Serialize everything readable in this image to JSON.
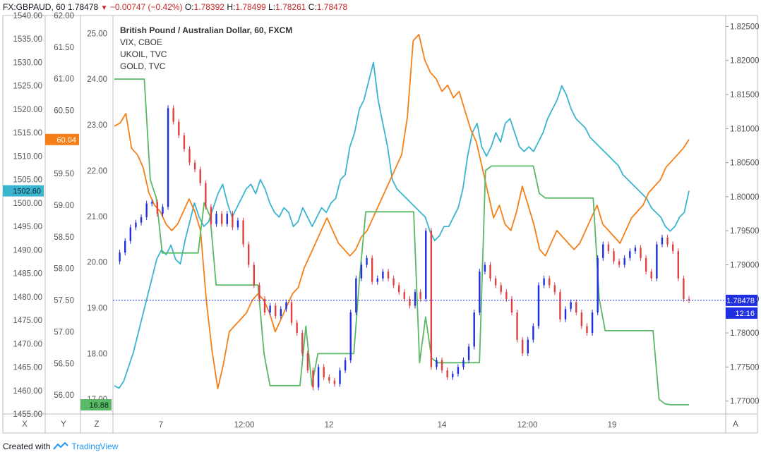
{
  "header": {
    "symbol": "FX:GBPAUD, 60",
    "last": "1.78478",
    "change": "−0.00747 (−0.42%)",
    "o_label": "O:",
    "o_value": "1.78392",
    "h_label": "H:",
    "h_value": "1.78499",
    "l_label": "L:",
    "l_value": "1.78261",
    "c_label": "C:",
    "c_value": "1.78478"
  },
  "footer": {
    "created_with": "Created with",
    "brand": "TradingView"
  },
  "axis_buttons": {
    "x": "X",
    "y": "Y",
    "z": "Z",
    "a": "A"
  },
  "chart_data": {
    "type": "line",
    "title": "British Pound / Australian Dollar, 60, FXCM",
    "legend": [
      "British Pound / Australian Dollar, 60, FXCM",
      "VIX, CBOE",
      "UKOIL, TVC",
      "GOLD, TVC"
    ],
    "x_ticks": [
      "7",
      "12:00",
      "12",
      "14",
      "12:00",
      "19"
    ],
    "axes": {
      "gold": {
        "range": [
          1455,
          1540
        ],
        "ticks": [
          1540,
          1535,
          1530,
          1525,
          1520,
          1515,
          1510,
          1505,
          1500,
          1495,
          1490,
          1485,
          1480,
          1475,
          1470,
          1465,
          1460,
          1455
        ],
        "tick_labels": [
          "1540.00",
          "1535.00",
          "1530.00",
          "1525.00",
          "1520.00",
          "1515.00",
          "1510.00",
          "1505.00",
          "1500.00",
          "1495.00",
          "1490.00",
          "1485.00",
          "1480.00",
          "1475.00",
          "1470.00",
          "1465.00",
          "1460.00",
          "1455.00"
        ]
      },
      "ukoil": {
        "range": [
          55.7,
          62.0
        ],
        "ticks": [
          62,
          61.5,
          61,
          60.5,
          60,
          59.5,
          59,
          58.5,
          58,
          57.5,
          57,
          56.5,
          56
        ],
        "tick_labels": [
          "62.00",
          "61.50",
          "61.00",
          "60.50",
          "60.00",
          "59.50",
          "59.00",
          "58.50",
          "58.00",
          "57.50",
          "57.00",
          "56.50",
          "56.00"
        ]
      },
      "vix": {
        "range": [
          16.68,
          25.39
        ],
        "ticks": [
          25,
          24,
          23,
          22,
          21,
          20,
          19,
          18,
          17
        ],
        "tick_labels": [
          "25.00",
          "24.00",
          "23.00",
          "22.00",
          "21.00",
          "20.00",
          "19.00",
          "18.00",
          "17.00"
        ]
      },
      "gbpaud": {
        "range": [
          1.7681,
          1.8266
        ],
        "ticks": [
          1.825,
          1.82,
          1.815,
          1.81,
          1.805,
          1.8,
          1.795,
          1.79,
          1.785,
          1.78,
          1.775,
          1.77
        ],
        "tick_labels": [
          "1.82500",
          "1.82000",
          "1.81500",
          "1.81000",
          "1.80500",
          "1.80000",
          "1.79500",
          "1.79000",
          "1.78500",
          "1.78000",
          "1.77500",
          "1.77000"
        ]
      }
    },
    "badges": {
      "gold_last": "1502.60",
      "ukoil_last": "60.04",
      "vix_last": "16.88",
      "price_last": "1.78478",
      "countdown": "12:16"
    },
    "series": [
      {
        "name": "GOLD, TVC",
        "axis": "gold",
        "color": "#3ab5d0",
        "values": [
          1461,
          1460.5,
          1462,
          1465,
          1468,
          1472,
          1476,
          1480,
          1484,
          1488,
          1490,
          1489,
          1491,
          1488,
          1487,
          1492,
          1496,
          1500,
          1497,
          1495,
          1496,
          1499,
          1502,
          1504,
          1500,
          1497,
          1499,
          1501,
          1503,
          1504,
          1502,
          1505,
          1503,
          1500,
          1498,
          1497,
          1499,
          1498,
          1495,
          1496,
          1499,
          1497,
          1495,
          1497,
          1499,
          1498,
          1500,
          1501,
          1505,
          1506,
          1512,
          1515,
          1520,
          1522,
          1526,
          1530,
          1522,
          1517,
          1512,
          1505,
          1503,
          1502,
          1501,
          1500,
          1499,
          1498,
          1497,
          1494,
          1492,
          1493,
          1495,
          1495,
          1497,
          1499,
          1503,
          1510,
          1515,
          1517,
          1512,
          1510,
          1512,
          1515,
          1513,
          1517,
          1518,
          1515,
          1512,
          1511,
          1512,
          1511,
          1513,
          1515,
          1518,
          1520,
          1522,
          1525,
          1523,
          1520,
          1518,
          1517,
          1516,
          1514,
          1513,
          1512,
          1511,
          1510,
          1509,
          1508,
          1506,
          1505,
          1504,
          1503,
          1502,
          1501,
          1499,
          1498,
          1497,
          1495,
          1494,
          1495,
          1497,
          1498,
          1502.6
        ]
      },
      {
        "name": "UKOIL, TVC",
        "axis": "ukoil",
        "color": "#f57f17",
        "values": [
          60.25,
          60.3,
          60.45,
          59.9,
          59.8,
          59.6,
          59.2,
          59.0,
          58.9,
          58.7,
          58.6,
          58.7,
          58.9,
          59.1,
          58.9,
          58.6,
          57.5,
          56.7,
          56.1,
          56.5,
          57.0,
          57.1,
          57.2,
          57.3,
          57.5,
          57.6,
          57.5,
          57.3,
          57.0,
          57.2,
          57.4,
          57.6,
          57.7,
          58.0,
          58.2,
          58.4,
          58.6,
          58.8,
          58.6,
          58.4,
          58.3,
          58.2,
          58.3,
          58.5,
          58.6,
          58.8,
          59.0,
          59.2,
          59.4,
          59.6,
          59.8,
          60.4,
          61.6,
          61.7,
          61.3,
          61.1,
          61.0,
          60.8,
          60.9,
          60.7,
          60.8,
          60.5,
          60.2,
          60.0,
          59.6,
          59.2,
          58.8,
          59.0,
          58.7,
          58.6,
          58.9,
          59.3,
          59.0,
          58.7,
          58.3,
          58.2,
          58.4,
          58.6,
          58.5,
          58.4,
          58.3,
          58.4,
          58.6,
          58.8,
          59.0,
          58.7,
          58.6,
          58.5,
          58.4,
          58.6,
          58.8,
          58.9,
          59.0,
          59.2,
          59.3,
          59.4,
          59.6,
          59.7,
          59.8,
          59.9,
          60.04
        ]
      },
      {
        "name": "VIX, CBOE",
        "axis": "vix",
        "color": "#5ab867",
        "values": [
          24.0,
          24.0,
          24.0,
          24.0,
          24.0,
          24.0,
          21.8,
          21.4,
          20.2,
          20.2,
          20.2,
          20.2,
          20.2,
          20.2,
          20.2,
          21.3,
          21.0,
          19.5,
          19.5,
          19.5,
          19.5,
          19.5,
          19.5,
          19.5,
          19.5,
          18.0,
          17.3,
          17.3,
          17.3,
          17.3,
          17.3,
          17.3,
          18.6,
          17.3,
          18.0,
          18.0,
          18.0,
          18.0,
          18.0,
          18.0,
          18.0,
          19.7,
          21.1,
          21.1,
          21.1,
          21.1,
          21.1,
          21.1,
          21.1,
          21.1,
          21.1,
          17.8,
          18.8,
          17.9,
          17.8,
          17.8,
          17.8,
          17.8,
          17.8,
          17.8,
          17.8,
          17.8,
          22.0,
          22.1,
          22.1,
          22.1,
          22.1,
          22.1,
          22.1,
          22.1,
          22.1,
          21.5,
          21.4,
          21.4,
          21.4,
          21.4,
          21.4,
          21.4,
          21.4,
          21.4,
          21.4,
          19.2,
          18.5,
          18.5,
          18.5,
          18.5,
          18.5,
          18.5,
          18.5,
          18.5,
          18.5,
          17.0,
          16.9,
          16.88,
          16.88,
          16.88,
          16.88
        ]
      },
      {
        "name": "British Pound / Australian Dollar, 60, FXCM",
        "axis": "gbpaud",
        "color": "#1f2ee0",
        "down_color": "#e04040",
        "style": "candles",
        "values": [
          1.7905,
          1.7918,
          1.7935,
          1.7955,
          1.7962,
          1.797,
          1.799,
          1.7992,
          1.7975,
          1.7985,
          1.813,
          1.811,
          1.809,
          1.807,
          1.805,
          1.804,
          1.802,
          1.7985,
          1.796,
          1.7975,
          1.796,
          1.7975,
          1.7955,
          1.7965,
          1.793,
          1.79,
          1.787,
          1.785,
          1.783,
          1.784,
          1.7825,
          1.7835,
          1.7845,
          1.7815,
          1.78,
          1.777,
          1.7745,
          1.772,
          1.775,
          1.7735,
          1.773,
          1.7725,
          1.7745,
          1.776,
          1.783,
          1.788,
          1.79,
          1.791,
          1.7875,
          1.788,
          1.789,
          1.788,
          1.787,
          1.786,
          1.785,
          1.784,
          1.786,
          1.785,
          1.795,
          1.775,
          1.776,
          1.7745,
          1.7735,
          1.774,
          1.775,
          1.776,
          1.778,
          1.783,
          1.789,
          1.79,
          1.788,
          1.787,
          1.786,
          1.785,
          1.783,
          1.779,
          1.777,
          1.779,
          1.781,
          1.787,
          1.788,
          1.787,
          1.786,
          1.782,
          1.7835,
          1.7845,
          1.783,
          1.781,
          1.78,
          1.783,
          1.791,
          1.793,
          1.792,
          1.7905,
          1.79,
          1.791,
          1.792,
          1.7925,
          1.791,
          1.789,
          1.788,
          1.793,
          1.794,
          1.793,
          1.792,
          1.788,
          1.785,
          1.78478
        ]
      }
    ]
  }
}
